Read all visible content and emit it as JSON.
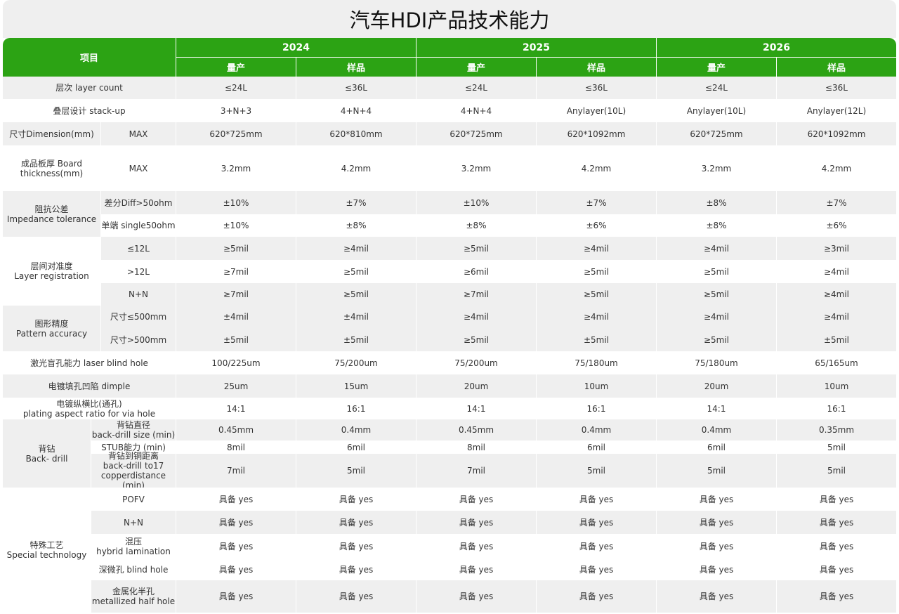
{
  "title": "汽车HDI产品技术能力",
  "colors": {
    "header_green": "#2ca314",
    "row_gray": "#efefef"
  },
  "header": {
    "item_label": "项目",
    "years": [
      {
        "year": "2024",
        "sub": [
          "量产",
          "样品"
        ]
      },
      {
        "year": "2025",
        "sub": [
          "量产",
          "样品"
        ]
      },
      {
        "year": "2026",
        "sub": [
          "量产",
          "样品"
        ]
      }
    ]
  },
  "groups": [
    {
      "label": "层次  layer count",
      "rows": [
        {
          "label": "",
          "values": [
            "≤24L",
            "≤36L",
            "≤24L",
            "≤36L",
            "≤24L",
            "≤36L"
          ]
        }
      ]
    },
    {
      "label": "叠层设计 stack-up",
      "rows": [
        {
          "label": "",
          "values": [
            "3+N+3",
            "4+N+4",
            "4+N+4",
            "Anylayer(10L)",
            "Anylayer(10L)",
            "Anylayer(12L)"
          ]
        }
      ]
    },
    {
      "label": "尺寸Dimension(mm)",
      "rows": [
        {
          "label": "MAX",
          "values": [
            "620*725mm",
            "620*810mm",
            "620*725mm",
            "620*1092mm",
            "620*725mm",
            "620*1092mm"
          ]
        }
      ]
    },
    {
      "label": "成品板厚 Board\nthickness(mm)",
      "rows": [
        {
          "label": "MAX",
          "values": [
            "3.2mm",
            "4.2mm",
            "3.2mm",
            "4.2mm",
            "3.2mm",
            "4.2mm"
          ]
        }
      ]
    },
    {
      "label": "阻抗公差\nImpedance tolerance",
      "rows": [
        {
          "label": "差分Diff>50ohm",
          "values": [
            "±10%",
            "±7%",
            "±10%",
            "±7%",
            "±8%",
            "±7%"
          ]
        },
        {
          "label": "单端 single50ohm",
          "values": [
            "±10%",
            "±8%",
            "±8%",
            "±6%",
            "±8%",
            "±6%"
          ]
        }
      ]
    },
    {
      "label": "层间对准度\nLayer registration",
      "rows": [
        {
          "label": "≤12L",
          "values": [
            "≥5mil",
            "≥4mil",
            "≥5mil",
            "≥4mil",
            "≥4mil",
            "≥3mil"
          ]
        },
        {
          "label": ">12L",
          "values": [
            "≥7mil",
            "≥5mil",
            "≥6mil",
            "≥5mil",
            "≥5mil",
            "≥4mil"
          ]
        },
        {
          "label": "N+N",
          "values": [
            "≥7mil",
            "≥5mil",
            "≥7mil",
            "≥5mil",
            "≥5mil",
            "≥4mil"
          ]
        }
      ]
    },
    {
      "label": "图形精度\nPattern accuracy",
      "rows": [
        {
          "label": "尺寸≤500mm",
          "values": [
            "±4mil",
            "±4mil",
            "≥4mil",
            "≥4mil",
            "≥4mil",
            "≥4mil"
          ]
        },
        {
          "label": "尺寸>500mm",
          "values": [
            "±5mil",
            "±5mil",
            "≥5mil",
            "±5mil",
            "≥5mil",
            "±5mil"
          ]
        }
      ]
    },
    {
      "label": "激光盲孔能力 laser blind hole",
      "rows": [
        {
          "label": "",
          "values": [
            "100/225um",
            "75/200um",
            "75/200um",
            "75/180um",
            "75/180um",
            "65/165um"
          ]
        }
      ]
    },
    {
      "label": "电镀填孔凹陷 dimple",
      "rows": [
        {
          "label": "",
          "values": [
            "25um",
            "15um",
            "20um",
            "10um",
            "20um",
            "10um"
          ]
        }
      ]
    },
    {
      "label": "电镀纵横比(通孔)\nplating aspect ratio for via hole",
      "rows": [
        {
          "label": "",
          "values": [
            "14:1",
            "16:1",
            "14:1",
            "16:1",
            "14:1",
            "16:1"
          ]
        }
      ]
    },
    {
      "label": "背钻\nBack- drill",
      "rows": [
        {
          "label": "背钻直径\nback-drill size (min)",
          "values": [
            "0.45mm",
            "0.4mm",
            "0.45mm",
            "0.4mm",
            "0.4mm",
            "0.35mm"
          ]
        },
        {
          "label": "STUB能力 (min)",
          "values": [
            "8mil",
            "6mil",
            "8mil",
            "6mil",
            "6mil",
            "5mil"
          ]
        },
        {
          "label": "背钻到铜距离\nback-drill to17\ncopperdistance (min)",
          "values": [
            "7mil",
            "5mil",
            "7mil",
            "5mil",
            "5mil",
            "5mil"
          ]
        }
      ]
    },
    {
      "label": "特殊工艺\nSpecial  technology",
      "rows": [
        {
          "label": "POFV",
          "values": [
            "具备 yes",
            "具备 yes",
            "具备 yes",
            "具备 yes",
            "具备 yes",
            "具备 yes"
          ]
        },
        {
          "label": "N+N",
          "values": [
            "具备 yes",
            "具备 yes",
            "具备 yes",
            "具备 yes",
            "具备 yes",
            "具备 yes"
          ]
        },
        {
          "label": "混压\nhybrid lamination",
          "values": [
            "具备 yes",
            "具备 yes",
            "具备 yes",
            "具备 yes",
            "具备 yes",
            "具备 yes"
          ]
        },
        {
          "label": "深微孔 blind hole",
          "values": [
            "具备 yes",
            "具备 yes",
            "具备 yes",
            "具备 yes",
            "具备 yes",
            "具备 yes"
          ]
        },
        {
          "label": "金属化半孔\nmetallized half hole",
          "values": [
            "具备 yes",
            "具备 yes",
            "具备 yes",
            "具备 yes",
            "具备 yes",
            "具备 yes"
          ]
        }
      ]
    }
  ]
}
